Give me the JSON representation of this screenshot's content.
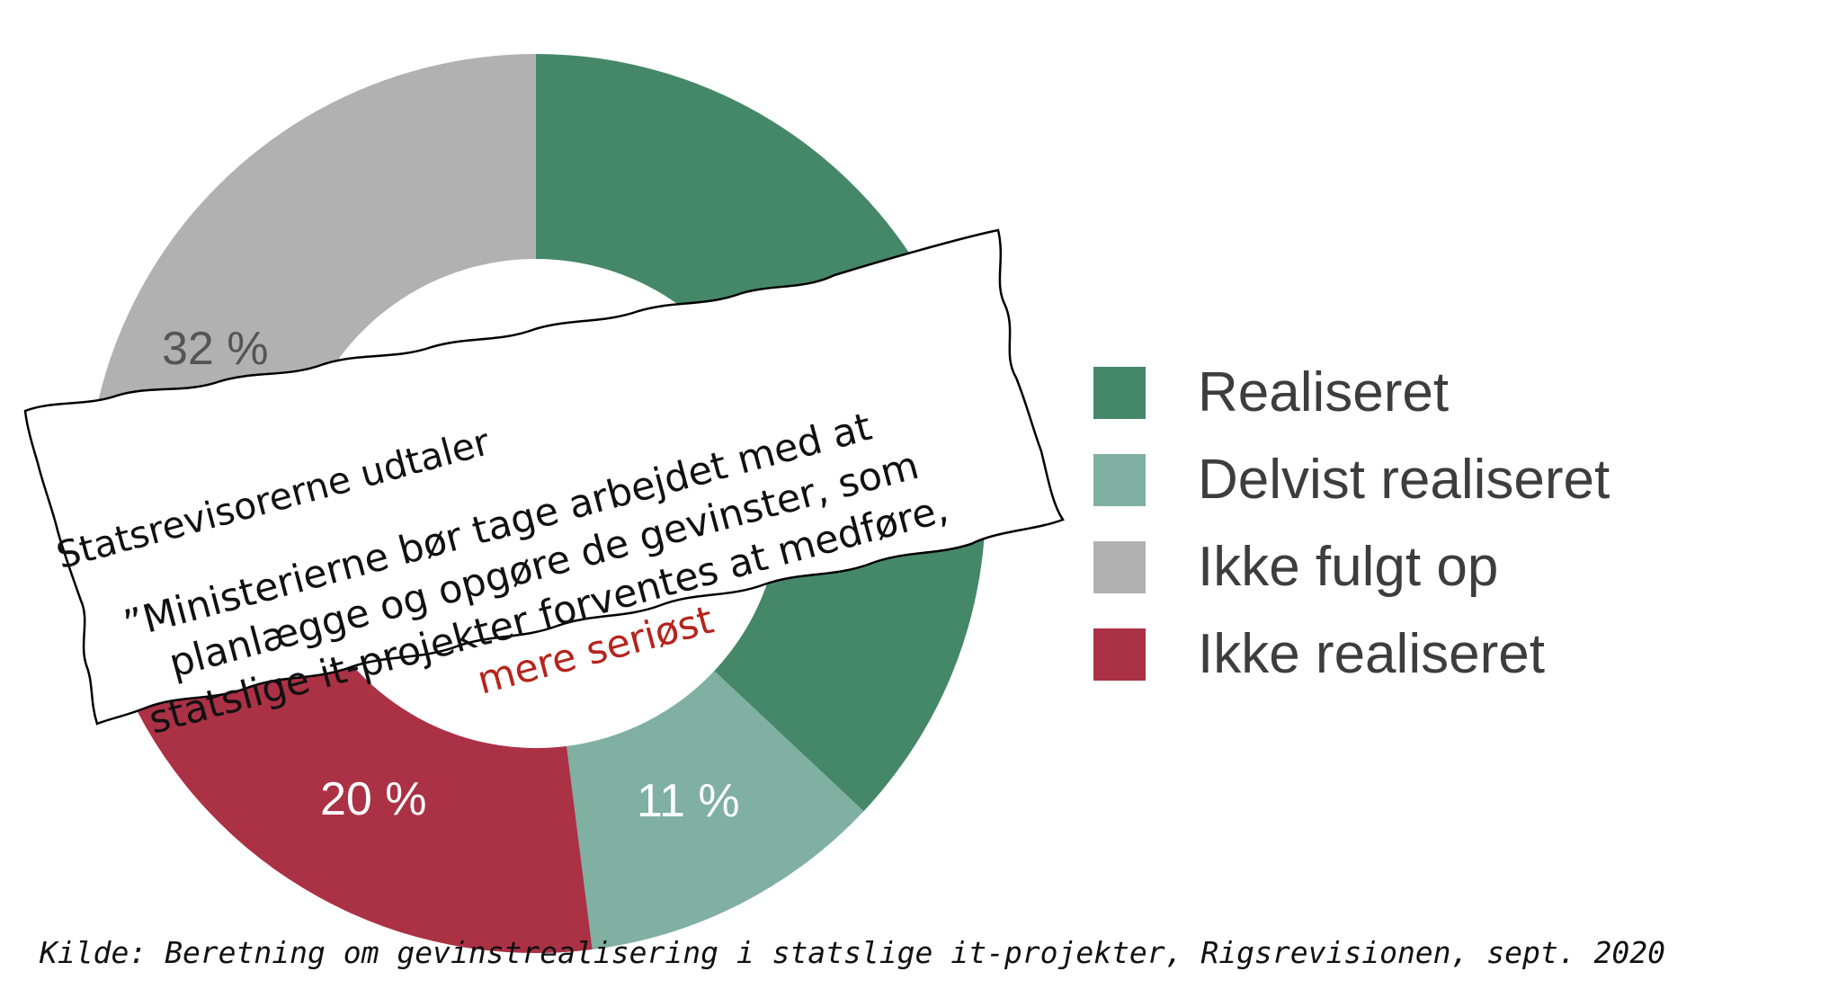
{
  "chart_data": {
    "type": "donut",
    "slices": [
      {
        "label": "Realiseret",
        "value": 37,
        "color": "#458869"
      },
      {
        "label": "Delvist realiseret",
        "value": 11,
        "color": "#7fb0a2"
      },
      {
        "label": "Ikke realiseret",
        "value": 20,
        "color": "#ab3145"
      },
      {
        "label": "Ikke fulgt op",
        "value": 32,
        "color": "#b1b1b1"
      }
    ],
    "visible_value_labels": [
      "32 %",
      "11 %",
      "20 %"
    ]
  },
  "legend": [
    {
      "label": "Realiseret",
      "color": "#458869"
    },
    {
      "label": "Delvist realiseret",
      "color": "#7fb0a2"
    },
    {
      "label": "Ikke fulgt op",
      "color": "#b1b1b1"
    },
    {
      "label": "Ikke realiseret",
      "color": "#ab3145"
    }
  ],
  "note": {
    "heading": "Statsrevisorerne udtaler",
    "quote_line1": "”Ministerierne bør tage arbejdet med at",
    "quote_line2": "planlægge og opgøre de gevinster, som",
    "quote_line3": "statslige it-projekter forventes at medføre,",
    "quote_highlight": "mere seriøst",
    "highlight_color": "#b5241d"
  },
  "source": "Kilde: Beretning om gevinstrealisering i statslige it-projekter, Rigsrevisionen, sept. 2020"
}
